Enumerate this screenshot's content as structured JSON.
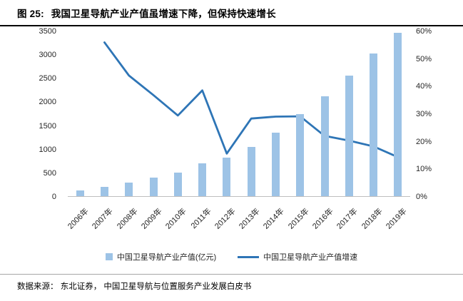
{
  "header": {
    "figure_label": "图 25:",
    "title": "我国卫星导航产业产值虽增速下降，但保持快速增长"
  },
  "chart_data": {
    "type": "bar",
    "subtype": "bar-line-combo",
    "title": "我国卫星导航产业产值虽增速下降，但保持快速增长",
    "categories": [
      "2006年",
      "2007年",
      "2008年",
      "2009年",
      "2010年",
      "2011年",
      "2012年",
      "2013年",
      "2014年",
      "2015年",
      "2016年",
      "2017年",
      "2018年",
      "2019年"
    ],
    "series": [
      {
        "name": "中国卫星导航产业产值(亿元)",
        "type": "bar",
        "axis": "left",
        "values": [
          127,
          190,
          285,
          390,
          505,
          700,
          810,
          1040,
          1343,
          1735,
          2118,
          2550,
          3016,
          3450
        ]
      },
      {
        "name": "中国卫星导航产业产值增速",
        "type": "line",
        "axis": "right",
        "values": [
          null,
          56.0,
          44.0,
          36.9,
          29.5,
          38.6,
          15.7,
          28.4,
          29.1,
          29.2,
          22.1,
          20.4,
          18.3,
          14.4
        ]
      }
    ],
    "left_axis": {
      "min": 0,
      "max": 3500,
      "step": 500,
      "labels": [
        "0",
        "500",
        "1000",
        "1500",
        "2000",
        "2500",
        "3000",
        "3500"
      ]
    },
    "right_axis": {
      "min": 0,
      "max": 60,
      "step": 10,
      "labels": [
        "0%",
        "10%",
        "20%",
        "30%",
        "40%",
        "50%",
        "60%"
      ]
    },
    "grid": false,
    "legend_position": "bottom",
    "colors": {
      "bar": "#9DC3E6",
      "line": "#2E75B6"
    }
  },
  "legend": {
    "items": [
      {
        "label": "中国卫星导航产业产值(亿元)",
        "swatch": "bar"
      },
      {
        "label": "中国卫星导航产业产值增速",
        "swatch": "line"
      }
    ]
  },
  "footer": {
    "source": "数据来源： 东北证券， 中国卫星导航与位置服务产业发展白皮书"
  }
}
